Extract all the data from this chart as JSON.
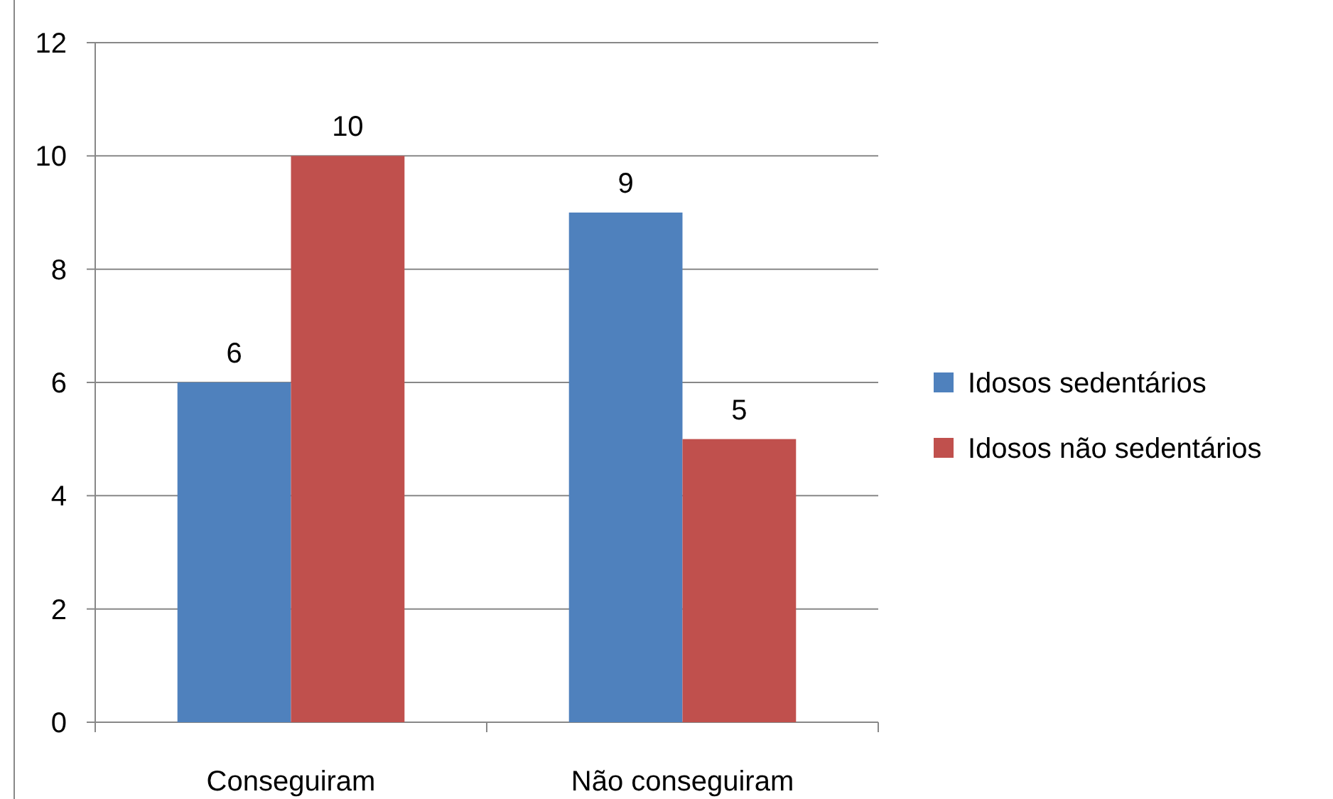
{
  "chart_data": {
    "type": "bar",
    "categories": [
      "Conseguiram",
      "Não conseguiram"
    ],
    "series": [
      {
        "name": "Idosos sedentários",
        "color": "#4f81bd",
        "values": [
          6,
          9
        ]
      },
      {
        "name": "Idosos não sedentários",
        "color": "#c0504d",
        "values": [
          10,
          5
        ]
      }
    ],
    "ylim": [
      0,
      12
    ],
    "yticks": [
      0,
      2,
      4,
      6,
      8,
      10,
      12
    ],
    "grid": "y",
    "legend": "right",
    "data_labels": true
  }
}
